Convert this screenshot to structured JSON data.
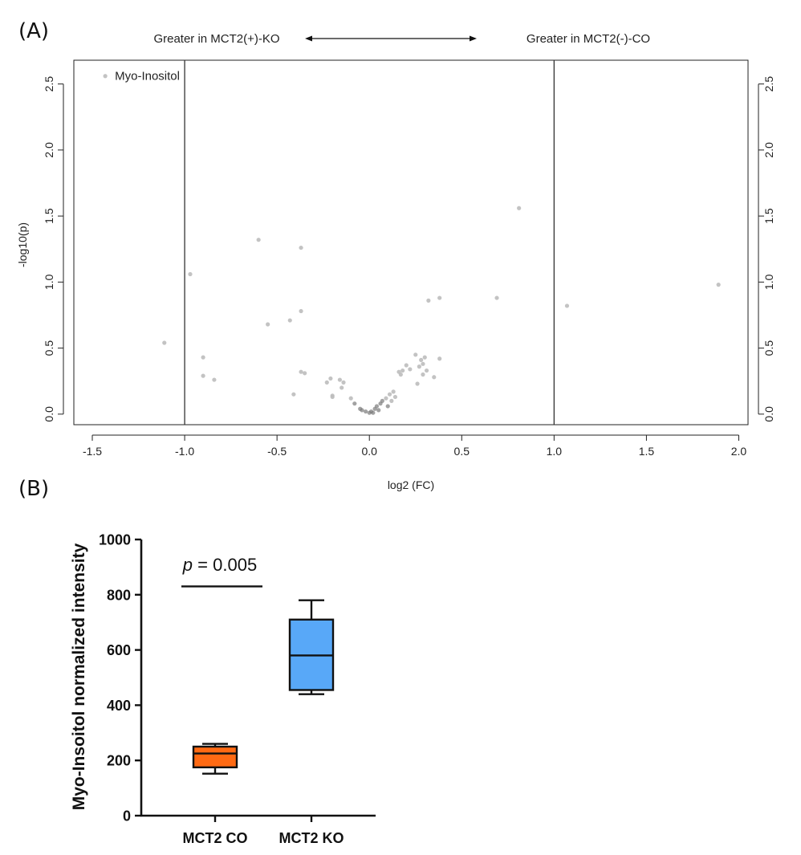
{
  "panel_a_label": "(A)",
  "panel_b_label": "(B)",
  "chart_data": [
    {
      "type": "scatter",
      "header_left": "Greater in MCT2(+)-KO",
      "header_right": "Greater in MCT2(-)-CO",
      "xlabel": "log2 (FC)",
      "ylabel": "-log10(p)",
      "xlim": [
        -1.6,
        2.05
      ],
      "ylim": [
        -0.08,
        2.68
      ],
      "x_ticks": [
        -1.5,
        -1.0,
        -0.5,
        0.0,
        0.5,
        1.0,
        1.5,
        2.0
      ],
      "x_tick_labels": [
        "-1.5",
        "-1.0",
        "-0.5",
        "0.0",
        "0.5",
        "1.0",
        "1.5",
        "2.0"
      ],
      "y_ticks": [
        0.0,
        0.5,
        1.0,
        1.5,
        2.0,
        2.5
      ],
      "y_tick_labels": [
        "0.0",
        "0.5",
        "1.0",
        "1.5",
        "2.0",
        "2.5"
      ],
      "threshold_lines_x": [
        -1.0,
        1.0
      ],
      "grid": false,
      "point_color": "#bdbdbd",
      "annotations": [
        {
          "text": "Myo-Inositol",
          "x": -1.43,
          "y": 2.56
        }
      ],
      "points": [
        {
          "x": -1.43,
          "y": 2.56
        },
        {
          "x": -0.97,
          "y": 1.06
        },
        {
          "x": -1.11,
          "y": 0.54
        },
        {
          "x": -0.9,
          "y": 0.43
        },
        {
          "x": -0.9,
          "y": 0.29
        },
        {
          "x": -0.84,
          "y": 0.26
        },
        {
          "x": -0.6,
          "y": 1.32
        },
        {
          "x": -0.55,
          "y": 0.68
        },
        {
          "x": -0.43,
          "y": 0.71
        },
        {
          "x": -0.37,
          "y": 1.26
        },
        {
          "x": -0.37,
          "y": 0.78
        },
        {
          "x": -0.37,
          "y": 0.32
        },
        {
          "x": -0.35,
          "y": 0.31
        },
        {
          "x": -0.41,
          "y": 0.15
        },
        {
          "x": -0.23,
          "y": 0.24
        },
        {
          "x": -0.21,
          "y": 0.27
        },
        {
          "x": -0.2,
          "y": 0.14
        },
        {
          "x": -0.2,
          "y": 0.13
        },
        {
          "x": -0.16,
          "y": 0.26
        },
        {
          "x": -0.14,
          "y": 0.24
        },
        {
          "x": -0.15,
          "y": 0.2
        },
        {
          "x": -0.1,
          "y": 0.12
        },
        {
          "x": -0.08,
          "y": 0.08
        },
        {
          "x": -0.05,
          "y": 0.04
        },
        {
          "x": -0.04,
          "y": 0.03
        },
        {
          "x": -0.02,
          "y": 0.02
        },
        {
          "x": 0.0,
          "y": 0.01
        },
        {
          "x": 0.01,
          "y": 0.02
        },
        {
          "x": 0.02,
          "y": 0.01
        },
        {
          "x": 0.03,
          "y": 0.04
        },
        {
          "x": 0.04,
          "y": 0.06
        },
        {
          "x": 0.05,
          "y": 0.03
        },
        {
          "x": 0.06,
          "y": 0.08
        },
        {
          "x": 0.07,
          "y": 0.1
        },
        {
          "x": 0.09,
          "y": 0.12
        },
        {
          "x": 0.1,
          "y": 0.06
        },
        {
          "x": 0.11,
          "y": 0.15
        },
        {
          "x": 0.12,
          "y": 0.1
        },
        {
          "x": 0.13,
          "y": 0.17
        },
        {
          "x": 0.14,
          "y": 0.13
        },
        {
          "x": 0.16,
          "y": 0.32
        },
        {
          "x": 0.17,
          "y": 0.3
        },
        {
          "x": 0.18,
          "y": 0.33
        },
        {
          "x": 0.2,
          "y": 0.37
        },
        {
          "x": 0.22,
          "y": 0.34
        },
        {
          "x": 0.25,
          "y": 0.45
        },
        {
          "x": 0.26,
          "y": 0.23
        },
        {
          "x": 0.27,
          "y": 0.36
        },
        {
          "x": 0.28,
          "y": 0.41
        },
        {
          "x": 0.29,
          "y": 0.38
        },
        {
          "x": 0.29,
          "y": 0.3
        },
        {
          "x": 0.3,
          "y": 0.43
        },
        {
          "x": 0.31,
          "y": 0.33
        },
        {
          "x": 0.32,
          "y": 0.86
        },
        {
          "x": 0.35,
          "y": 0.28
        },
        {
          "x": 0.38,
          "y": 0.88
        },
        {
          "x": 0.38,
          "y": 0.42
        },
        {
          "x": 0.69,
          "y": 0.88
        },
        {
          "x": 0.81,
          "y": 1.56
        },
        {
          "x": 1.07,
          "y": 0.82
        },
        {
          "x": 1.89,
          "y": 0.98
        }
      ]
    },
    {
      "type": "box",
      "ylabel": "Myo-Insoitol normalized intensity",
      "categories": [
        "MCT2 CO",
        "MCT2 KO"
      ],
      "ylim": [
        0,
        1000
      ],
      "y_ticks": [
        0,
        200,
        400,
        600,
        800,
        1000
      ],
      "y_tick_labels": [
        "0",
        "200",
        "400",
        "600",
        "800",
        "1000"
      ],
      "boxes": [
        {
          "category": "MCT2 CO",
          "min": 152,
          "q1": 175,
          "median": 225,
          "q3": 250,
          "max": 260,
          "color": "#ff6a13"
        },
        {
          "category": "MCT2 KO",
          "min": 440,
          "q1": 455,
          "median": 580,
          "q3": 710,
          "max": 780,
          "color": "#58a8f8"
        }
      ],
      "significance": {
        "p_label": "p",
        "p_rest": " = 0.005",
        "y": 830
      }
    }
  ]
}
